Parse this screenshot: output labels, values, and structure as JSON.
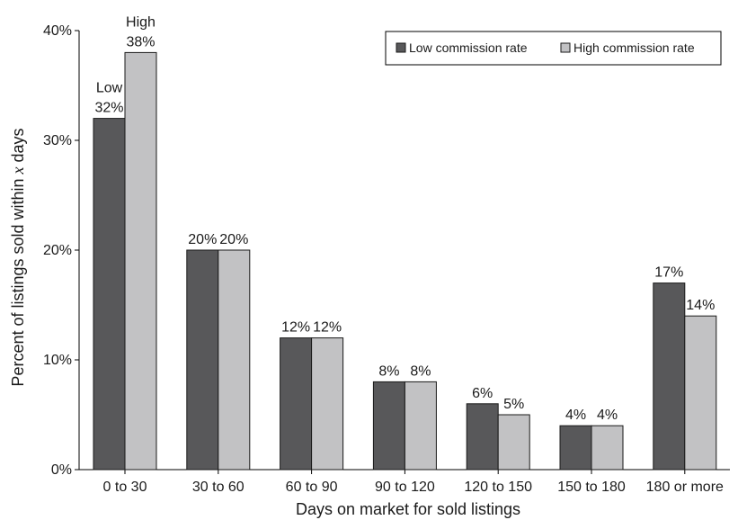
{
  "chart_data": {
    "type": "bar",
    "title": "",
    "xlabel": "Days on market for sold listings",
    "ylabel_parts": [
      "Percent of listings sold within ",
      "x",
      " days"
    ],
    "categories": [
      "0 to 30",
      "30 to 60",
      "60 to 90",
      "90 to 120",
      "120 to 150",
      "150 to 180",
      "180 or more"
    ],
    "series": [
      {
        "name": "Low commission rate",
        "color": "#58585a",
        "values": [
          32,
          20,
          12,
          8,
          6,
          4,
          17
        ],
        "labels": [
          "32%",
          "20%",
          "12%",
          "8%",
          "6%",
          "4%",
          "17%"
        ]
      },
      {
        "name": "High commission rate",
        "color": "#c2c2c4",
        "values": [
          38,
          20,
          12,
          8,
          5,
          4,
          14
        ],
        "labels": [
          "38%",
          "20%",
          "12%",
          "8%",
          "5%",
          "4%",
          "14%"
        ]
      }
    ],
    "series_tags": [
      "Low",
      "High"
    ],
    "ylim": [
      0,
      40
    ],
    "yticks": [
      0,
      10,
      20,
      30,
      40
    ],
    "ytick_labels": [
      "0%",
      "10%",
      "20%",
      "30%",
      "40%"
    ],
    "legend_position": "top-right",
    "grid": false
  }
}
